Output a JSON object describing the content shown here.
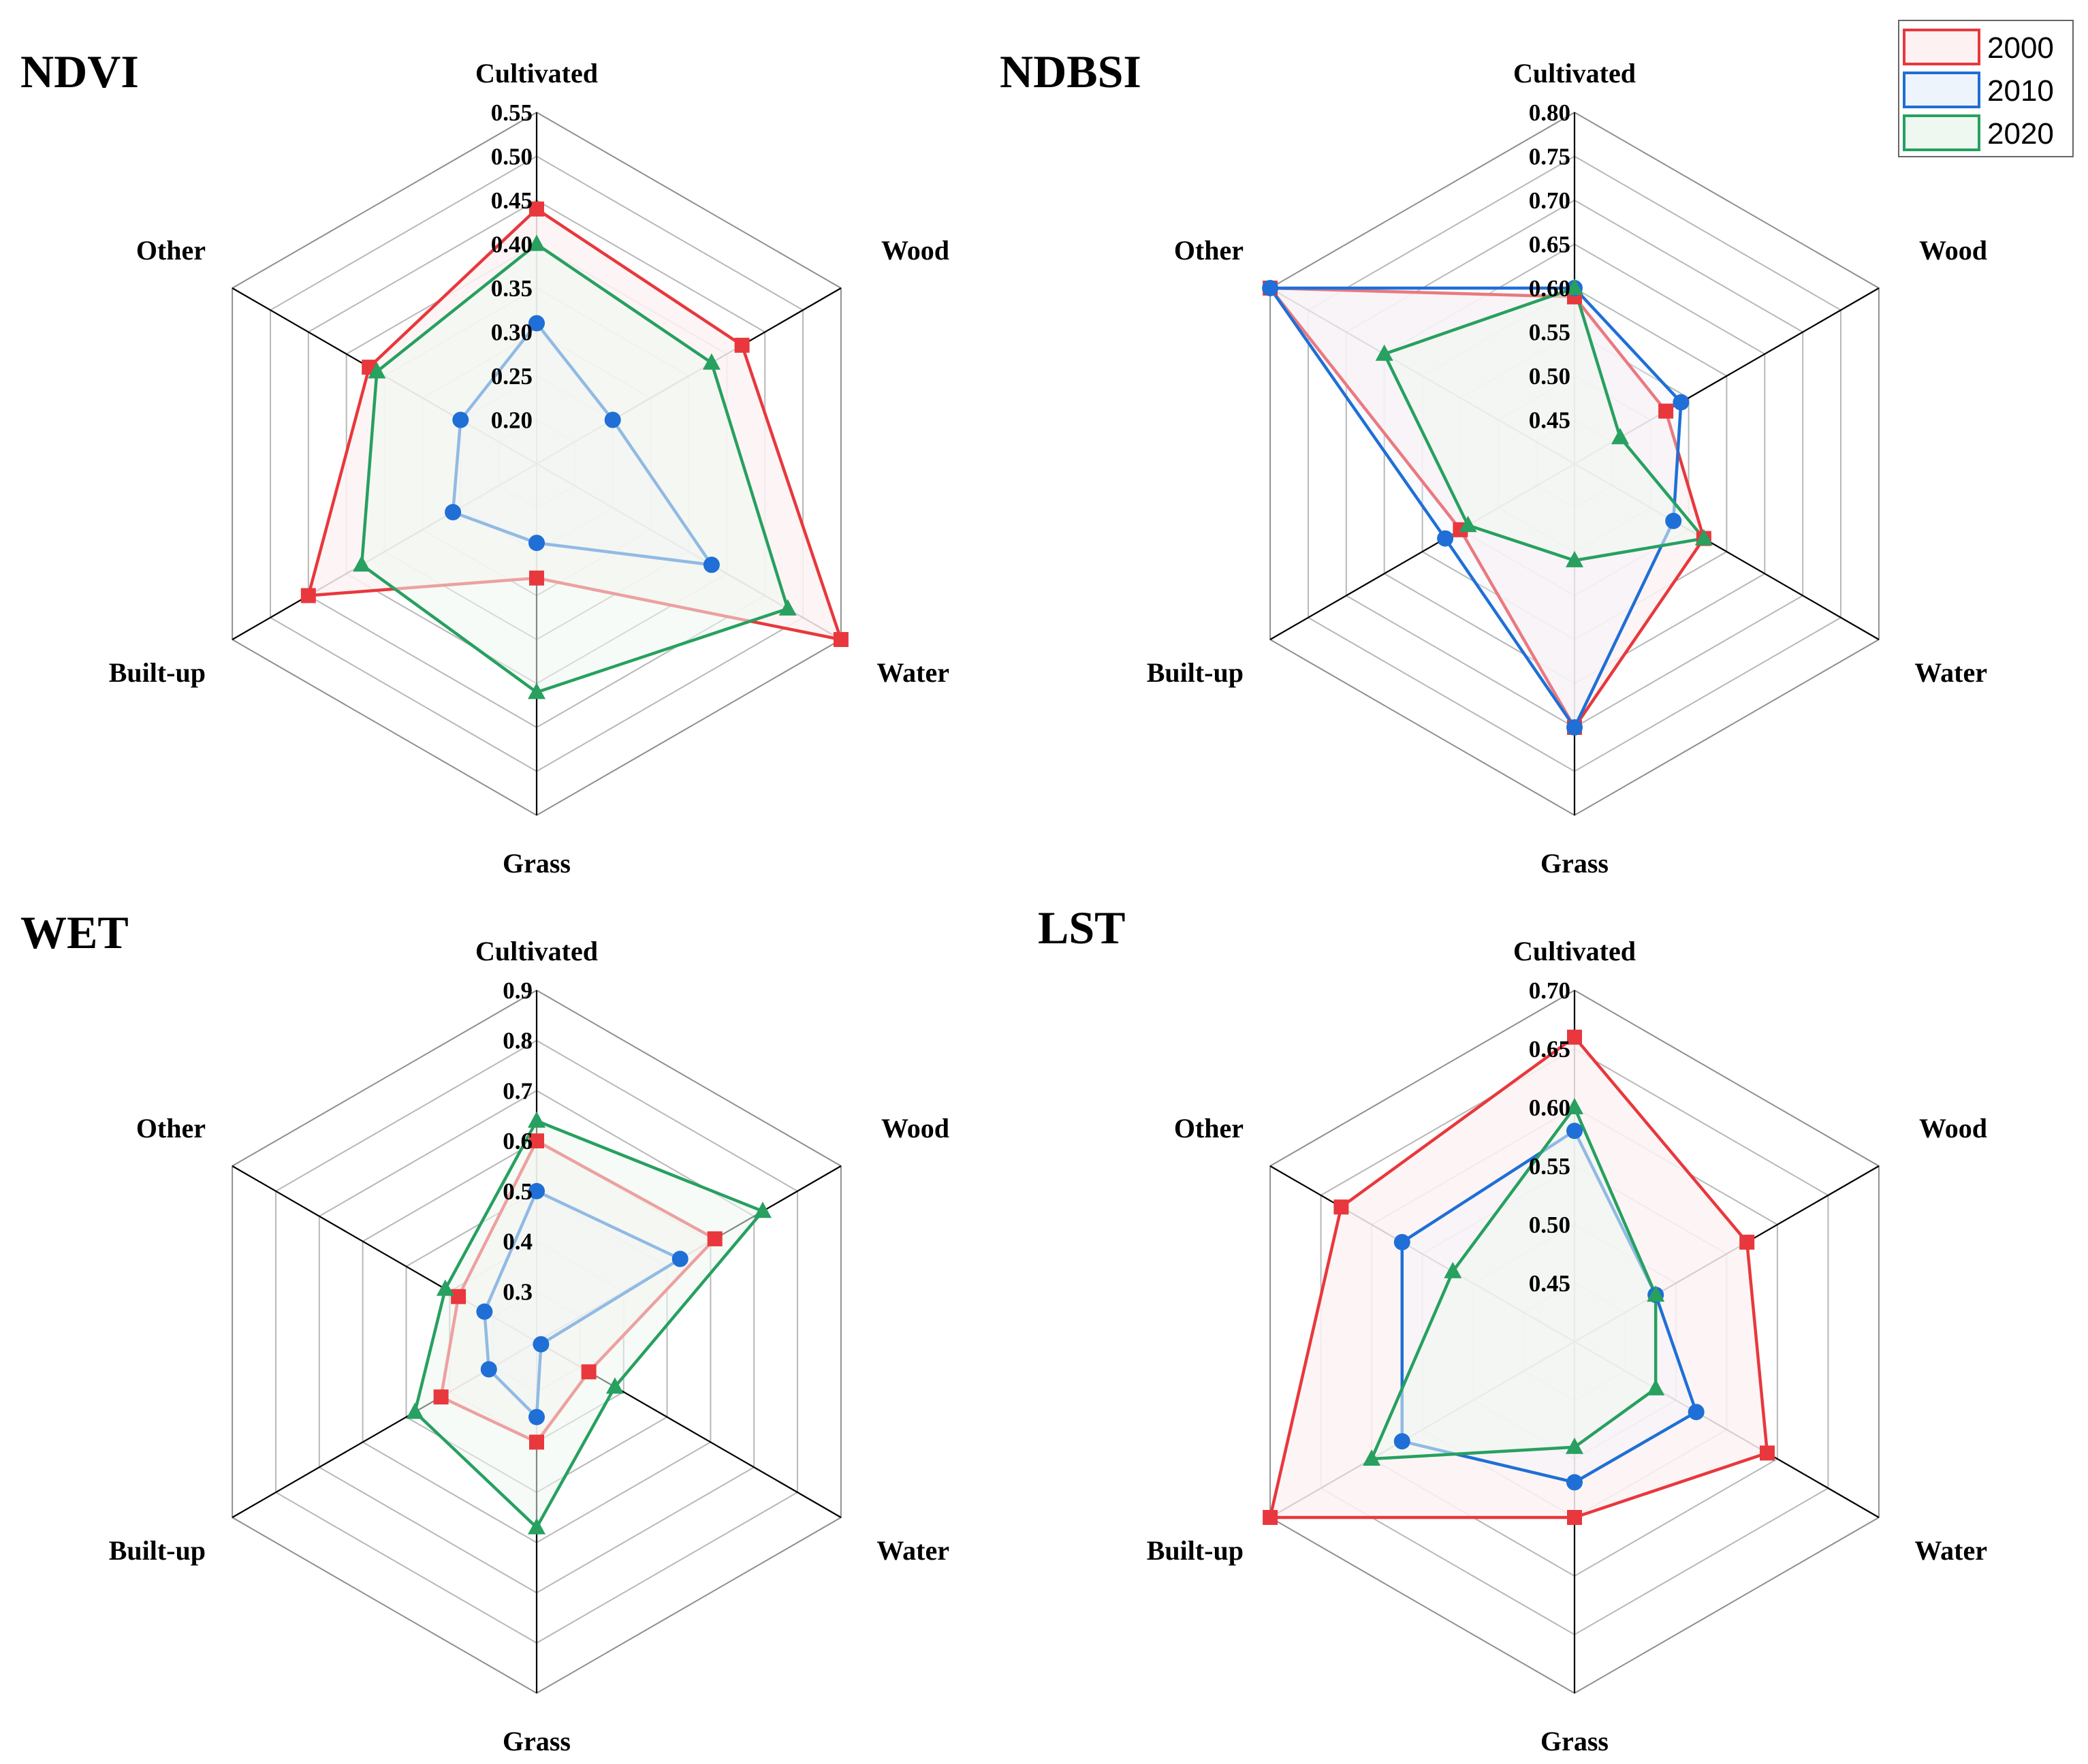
{
  "legend": [
    {
      "label": "2000",
      "color": "#e8383d",
      "fill": "#fdf1f1",
      "marker": "square"
    },
    {
      "label": "2010",
      "color": "#1f6fd6",
      "fill": "#eef4fc",
      "marker": "circle"
    },
    {
      "label": "2020",
      "color": "#27a060",
      "fill": "#eef8f1",
      "marker": "triangle"
    }
  ],
  "chart_data": [
    {
      "type": "radar",
      "title": "NDVI",
      "axes": [
        "Cultivated",
        "Wood",
        "Water",
        "Grass",
        "Built-up",
        "Other"
      ],
      "range": [
        0.15,
        0.55
      ],
      "ticks": [
        "0.20",
        "0.25",
        "0.30",
        "0.35",
        "0.40",
        "0.45",
        "0.50",
        "0.55"
      ],
      "series": [
        {
          "name": "2000",
          "values": [
            0.44,
            0.42,
            0.55,
            0.28,
            0.45,
            0.37
          ]
        },
        {
          "name": "2010",
          "values": [
            0.31,
            0.25,
            0.38,
            0.24,
            0.26,
            0.25
          ]
        },
        {
          "name": "2020",
          "values": [
            0.4,
            0.38,
            0.48,
            0.41,
            0.38,
            0.36
          ]
        }
      ]
    },
    {
      "type": "radar",
      "title": "NDBSI",
      "axes": [
        "Cultivated",
        "Wood",
        "Water",
        "Grass",
        "Built-up",
        "Other"
      ],
      "range": [
        0.4,
        0.8
      ],
      "ticks": [
        "0.45",
        "0.50",
        "0.55",
        "0.60",
        "0.65",
        "0.70",
        "0.75",
        "0.80"
      ],
      "series": [
        {
          "name": "2000",
          "values": [
            0.59,
            0.52,
            0.57,
            0.7,
            0.55,
            0.8
          ]
        },
        {
          "name": "2010",
          "values": [
            0.6,
            0.54,
            0.53,
            0.7,
            0.57,
            0.8
          ]
        },
        {
          "name": "2020",
          "values": [
            0.6,
            0.46,
            0.57,
            0.51,
            0.54,
            0.65
          ]
        }
      ]
    },
    {
      "type": "radar",
      "title": "WET",
      "axes": [
        "Cultivated",
        "Wood",
        "Water",
        "Grass",
        "Built-up",
        "Other"
      ],
      "range": [
        0.2,
        0.9
      ],
      "ticks": [
        "0.3",
        "0.4",
        "0.5",
        "0.6",
        "0.7",
        "0.8",
        "0.9"
      ],
      "series": [
        {
          "name": "2000",
          "values": [
            0.6,
            0.61,
            0.32,
            0.4,
            0.42,
            0.38
          ]
        },
        {
          "name": "2010",
          "values": [
            0.5,
            0.53,
            0.21,
            0.35,
            0.31,
            0.32
          ]
        },
        {
          "name": "2020",
          "values": [
            0.64,
            0.72,
            0.38,
            0.57,
            0.48,
            0.41
          ]
        }
      ]
    },
    {
      "type": "radar",
      "title": "LST",
      "axes": [
        "Cultivated",
        "Wood",
        "Water",
        "Grass",
        "Built-up",
        "Other"
      ],
      "range": [
        0.4,
        0.7
      ],
      "ticks": [
        "0.45",
        "0.50",
        "0.55",
        "0.60",
        "0.65",
        "0.70"
      ],
      "series": [
        {
          "name": "2000",
          "values": [
            0.66,
            0.57,
            0.59,
            0.55,
            0.7,
            0.63
          ]
        },
        {
          "name": "2010",
          "values": [
            0.58,
            0.48,
            0.52,
            0.52,
            0.57,
            0.57
          ]
        },
        {
          "name": "2020",
          "values": [
            0.6,
            0.48,
            0.48,
            0.49,
            0.6,
            0.52
          ]
        }
      ]
    }
  ]
}
